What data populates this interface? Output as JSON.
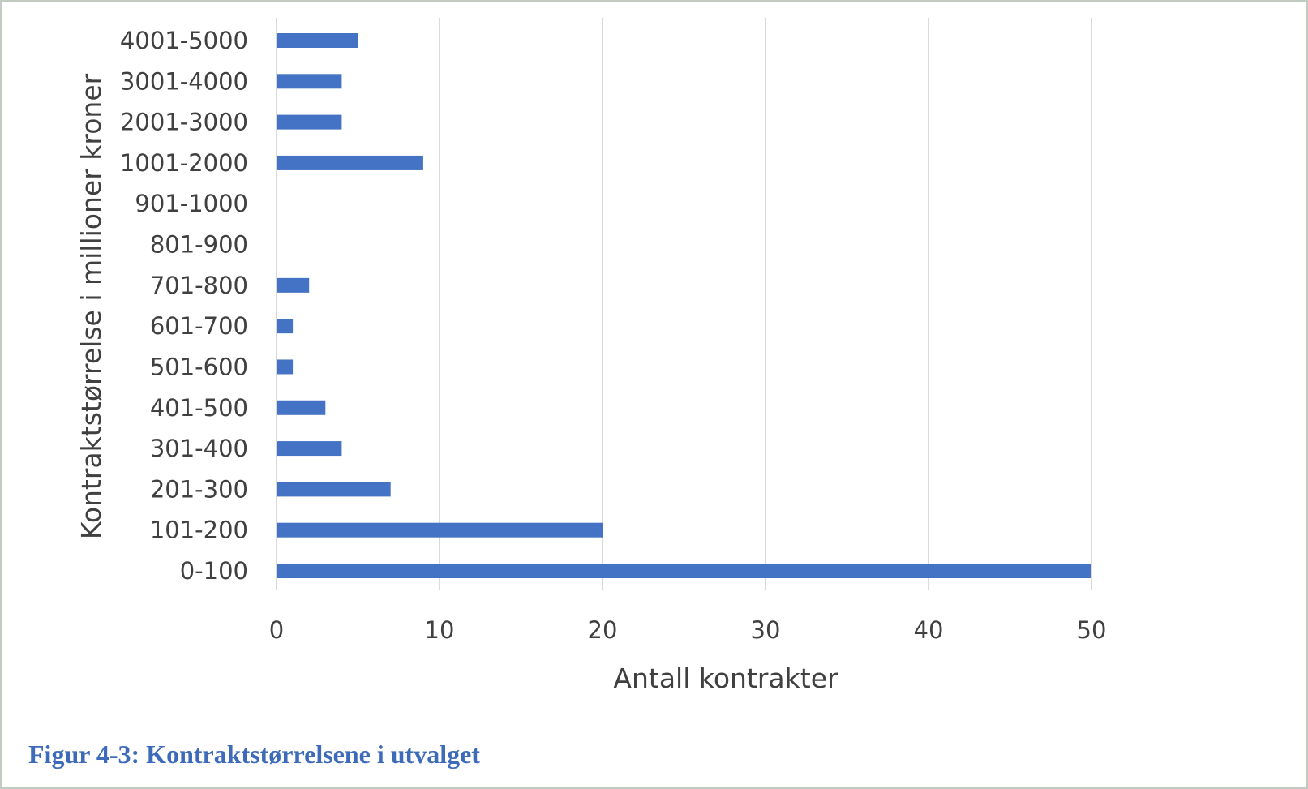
{
  "caption": "Figur 4-3: Kontraktstørrelsene i utvalget",
  "chart_data": {
    "type": "bar",
    "orientation": "horizontal",
    "categories": [
      "0-100",
      "101-200",
      "201-300",
      "301-400",
      "401-500",
      "501-600",
      "601-700",
      "701-800",
      "801-900",
      "901-1000",
      "1001-2000",
      "2001-3000",
      "3001-4000",
      "4001-5000"
    ],
    "values": [
      50,
      20,
      7,
      4,
      3,
      1,
      1,
      2,
      0,
      0,
      9,
      4,
      4,
      5
    ],
    "xlabel": "Antall kontrakter",
    "ylabel": "Kontraktstørrelse i millioner kroner",
    "xlim": [
      0,
      50
    ],
    "xticks": [
      0,
      10,
      20,
      30,
      40,
      50
    ],
    "grid": "vertical",
    "bar_color": "#4472c4",
    "grid_color": "#d9d9d9"
  }
}
